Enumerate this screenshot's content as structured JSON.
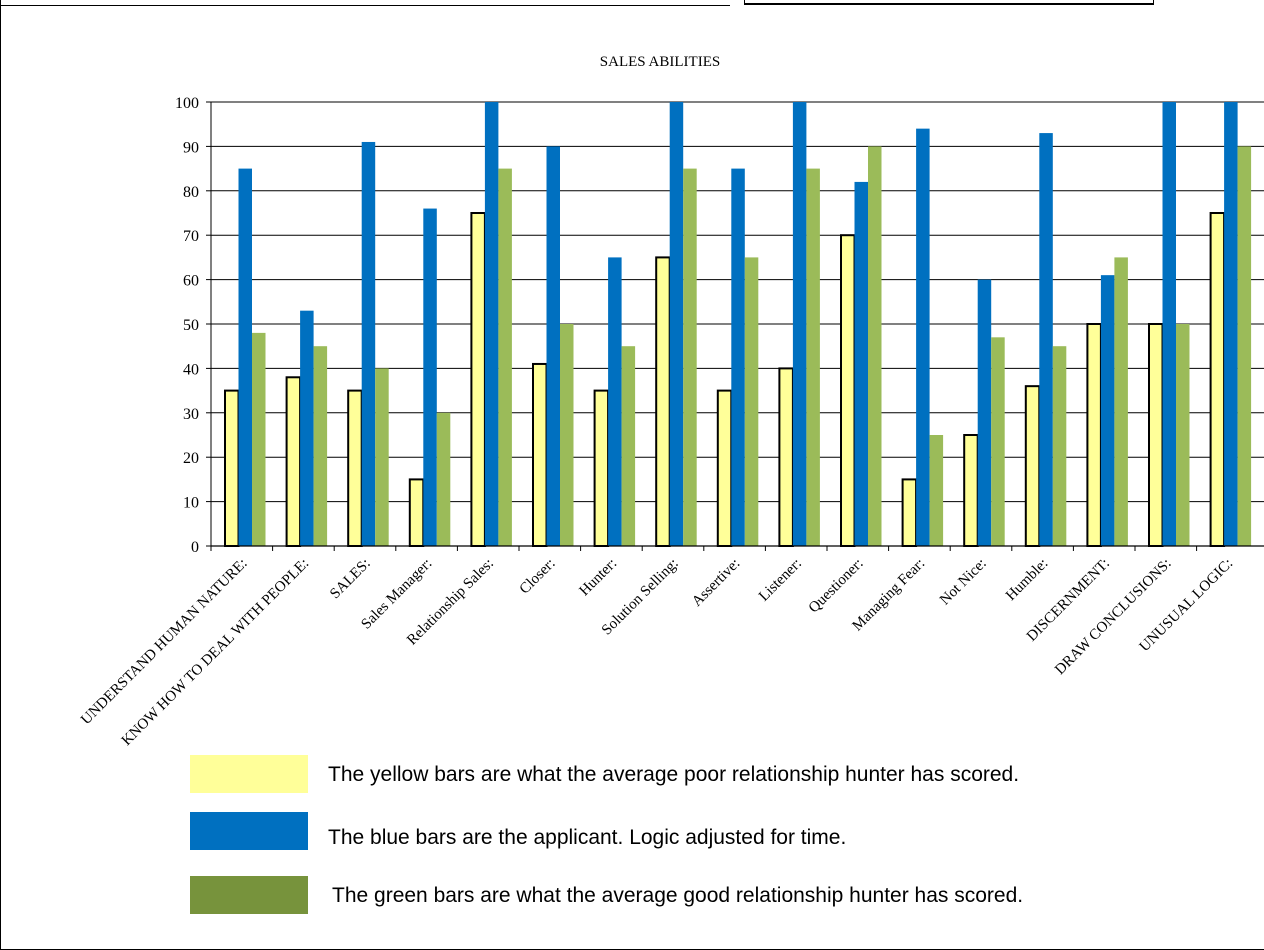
{
  "chart_data": {
    "type": "bar",
    "title": "SALES  ABILITIES",
    "categories": [
      "UNDERSTAND HUMAN NATURE:",
      "KNOW HOW TO DEAL WITH PEOPLE:",
      "SALES:",
      "Sales Manager:",
      "Relationship Sales:",
      "Closer:",
      "Hunter:",
      "Solution Selling:",
      "Assertive:",
      "Listener:",
      "Questioner:",
      "Managing Fear:",
      "Not Nice:",
      "Humble:",
      "DISCERNMENT:",
      "DRAW CONCLUSIONS:",
      "UNUSUAL LOGIC:"
    ],
    "series": [
      {
        "values": [
          35,
          38,
          35,
          15,
          75,
          41,
          35,
          65,
          35,
          40,
          70,
          15,
          25,
          36,
          50,
          50,
          75
        ],
        "color": "#ffff99"
      },
      {
        "values": [
          85,
          53,
          91,
          76,
          100,
          90,
          65,
          100,
          85,
          100,
          82,
          94,
          60,
          93,
          61,
          100,
          100
        ],
        "color": "#0070c0"
      },
      {
        "values": [
          48,
          45,
          40,
          30,
          85,
          50,
          45,
          85,
          65,
          85,
          90,
          25,
          47,
          45,
          65,
          50,
          90
        ],
        "color": "#9bbb59"
      }
    ],
    "ylim": [
      0,
      100
    ],
    "yticks": [
      0,
      10,
      20,
      30,
      40,
      50,
      60,
      70,
      80,
      90,
      100
    ],
    "grid": true,
    "xlabel": "",
    "ylabel": ""
  },
  "legend": {
    "items": [
      {
        "text": "The yellow bars are what the average poor relationship hunter has scored.",
        "color": "#ffff99"
      },
      {
        "text": "The blue bars are the applicant. Logic adjusted for time.",
        "color": "#0070c0"
      },
      {
        "text": "The green bars are what the average good relationship hunter has scored.",
        "color": "#77933c"
      }
    ]
  }
}
